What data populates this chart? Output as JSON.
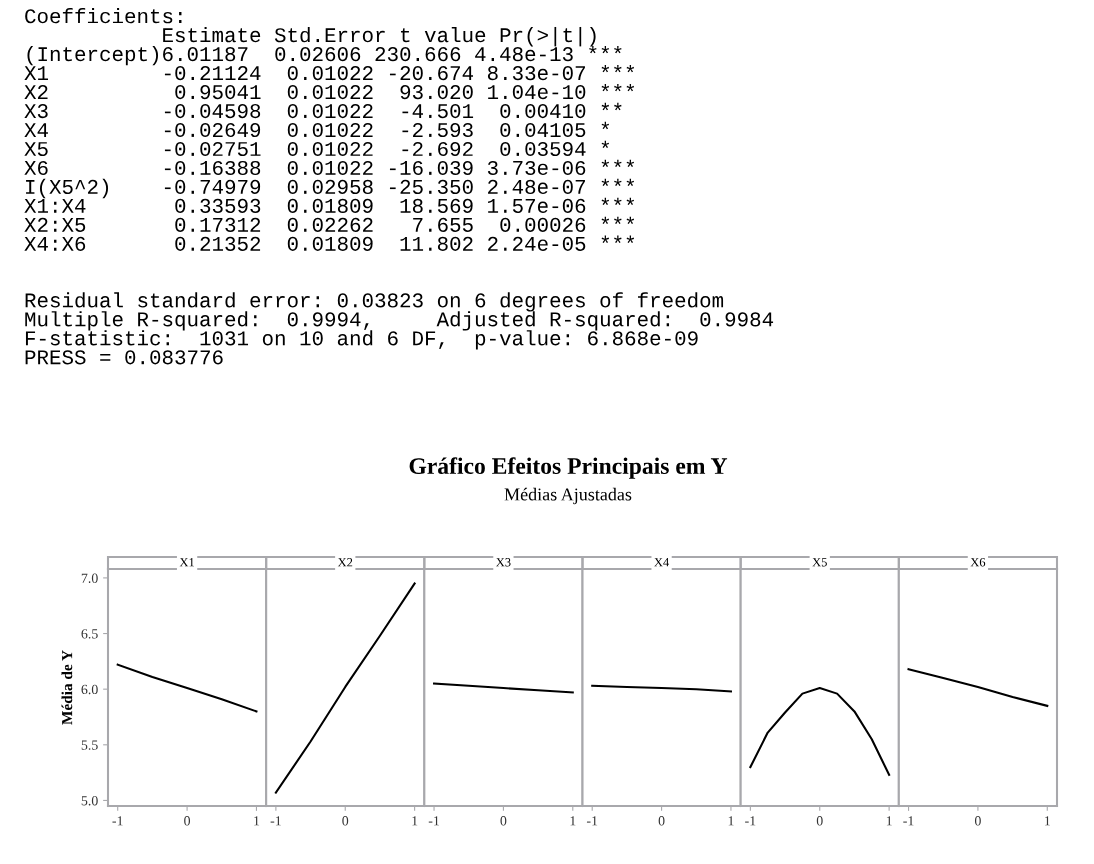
{
  "chart_data": [
    {
      "type": "other",
      "title": "Gráfico Efeitos Principais em Y",
      "subtitle": "Médias Ajustadas",
      "annotations": [
        "Coefficients:\n           Estimate Std.Error t value Pr(>|t|)\n(Intercept)6.01187  0.02606 230.666 4.48e-13 ***\nX1         -0.21124  0.01022 -20.674 8.33e-07 ***\nX2          0.95041  0.01022  93.020 1.04e-10 ***\nX3         -0.04598  0.01022  -4.501  0.00410 **\nX4         -0.02649  0.01022  -2.593  0.04105 *\nX5         -0.02751  0.01022  -2.692  0.03594 *\nX6         -0.16388  0.01022 -16.039 3.73e-06 ***\nI(X5^2)    -0.74979  0.02958 -25.350 2.48e-07 ***\nX1:X4       0.33593  0.01809  18.569 1.57e-06 ***\nX2:X5       0.17312  0.02262   7.655  0.00026 ***\nX4:X6       0.21352  0.01809  11.802 2.24e-05 ***",
        "Residual standard error: 0.03823 on 6 degrees of freedom\nMultiple R-squared:  0.9994,     Adjusted R-squared:  0.9984\nF-statistic:  1031 on 10 and 6 DF,  p-value: 6.868e-09\nPRESS = 0.083776"
      ]
    },
    {
      "type": "line",
      "title": "X1",
      "ylabel": "Média de Y",
      "x": [
        -1,
        -0.5,
        0,
        0.5,
        1
      ],
      "series": [
        {
          "color": "#000000",
          "values": [
            6.22,
            6.11,
            6.01,
            5.91,
            5.8
          ]
        }
      ],
      "xlim": [
        -1.14,
        1.14
      ],
      "xticks": [
        -1,
        0,
        1
      ],
      "ylim": [
        4.95,
        7.08
      ],
      "yticks": [
        {
          "value": 5,
          "label": "5.0"
        },
        5.5,
        {
          "value": 6,
          "label": "6.0"
        },
        6.5,
        {
          "value": 7,
          "label": "7.0"
        }
      ],
      "grid": false
    },
    {
      "type": "line",
      "title": "X2",
      "x": [
        -1,
        -0.5,
        0,
        0.5,
        1
      ],
      "series": [
        {
          "color": "#000000",
          "values": [
            5.07,
            5.53,
            6.02,
            6.48,
            6.95
          ]
        }
      ],
      "xlim": [
        -1.14,
        1.14
      ],
      "xticks": [
        -1,
        0,
        1
      ],
      "ylim": [
        4.95,
        7.08
      ],
      "tick_labels": "x",
      "grid": false
    },
    {
      "type": "line",
      "title": "X3",
      "x": [
        -1,
        -0.5,
        0,
        0.5,
        1
      ],
      "series": [
        {
          "color": "#000000",
          "values": [
            6.05,
            6.03,
            6.01,
            5.99,
            5.97
          ]
        }
      ],
      "xlim": [
        -1.14,
        1.14
      ],
      "xticks": [
        -1,
        0,
        1
      ],
      "ylim": [
        4.95,
        7.08
      ],
      "tick_labels": "x",
      "grid": false
    },
    {
      "type": "line",
      "title": "X4",
      "x": [
        -1,
        -0.5,
        0,
        0.5,
        1
      ],
      "series": [
        {
          "color": "#000000",
          "values": [
            6.03,
            6.02,
            6.01,
            6.0,
            5.98
          ]
        }
      ],
      "xlim": [
        -1.14,
        1.14
      ],
      "xticks": [
        -1,
        0,
        1
      ],
      "ylim": [
        4.95,
        7.08
      ],
      "tick_labels": "x",
      "grid": false
    },
    {
      "type": "line",
      "title": "X5",
      "x": [
        -1,
        -0.75,
        -0.5,
        -0.25,
        0,
        0.25,
        0.5,
        0.75,
        1
      ],
      "series": [
        {
          "color": "#000000",
          "values": [
            5.3,
            5.61,
            5.79,
            5.96,
            6.01,
            5.96,
            5.8,
            5.55,
            5.23
          ]
        }
      ],
      "xlim": [
        -1.14,
        1.14
      ],
      "xticks": [
        -1,
        0,
        1
      ],
      "ylim": [
        4.95,
        7.08
      ],
      "tick_labels": "x",
      "grid": false
    },
    {
      "type": "line",
      "title": "X6",
      "x": [
        -1,
        -0.5,
        0,
        0.5,
        1
      ],
      "series": [
        {
          "color": "#000000",
          "values": [
            6.18,
            6.1,
            6.02,
            5.93,
            5.85
          ]
        }
      ],
      "xlim": [
        -1.14,
        1.14
      ],
      "xticks": [
        -1,
        0,
        1
      ],
      "ylim": [
        4.95,
        7.08
      ],
      "tick_labels": "x",
      "grid": false
    }
  ]
}
